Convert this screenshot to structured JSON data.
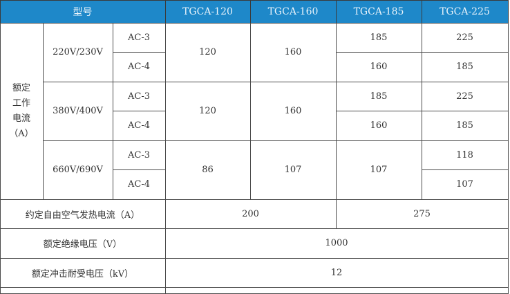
{
  "header": {
    "model_label": "型号",
    "models": [
      "TGCA-120",
      "TGCA-160",
      "TGCA-185",
      "TGCA-225"
    ]
  },
  "rated_current": {
    "label": "额定\n工作\n电流\n（A）",
    "groups": [
      {
        "voltage": "220V/230V",
        "categories": [
          "AC-3",
          "AC-4"
        ],
        "tgca120": "120",
        "tgca160": "160",
        "tgca185": [
          "185",
          "160"
        ],
        "tgca225": [
          "225",
          "185"
        ]
      },
      {
        "voltage": "380V/400V",
        "categories": [
          "AC-3",
          "AC-4"
        ],
        "tgca120": "120",
        "tgca160": "160",
        "tgca185": [
          "185",
          "160"
        ],
        "tgca225": [
          "225",
          "185"
        ]
      },
      {
        "voltage": "660V/690V",
        "categories": [
          "AC-3",
          "AC-4"
        ],
        "tgca120": "86",
        "tgca160": "107",
        "tgca185": "107",
        "tgca225": [
          "118",
          "107"
        ]
      }
    ]
  },
  "thermal_current": {
    "label": "约定自由空气发热电流（A）",
    "values": [
      "200",
      "275"
    ]
  },
  "insulation_voltage": {
    "label": "额定绝缘电压（V）",
    "value": "1000"
  },
  "impulse_voltage": {
    "label": "额定冲击耐受电压（kV）",
    "value": "12"
  }
}
